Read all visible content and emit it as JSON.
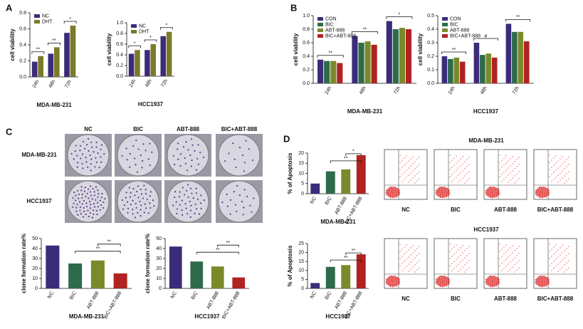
{
  "panels": {
    "letters": [
      "A",
      "B",
      "C",
      "D"
    ],
    "colony": {
      "columns": [
        "NC",
        "BIC",
        "ABT-888",
        "BIC+ABT-888"
      ],
      "rows": [
        "MDA-MB-231",
        "HCC1937"
      ]
    },
    "flow": {
      "titles": [
        "MDA-MB-231",
        "HCC1937"
      ],
      "columns": [
        "NC",
        "BIC",
        "ABT-888",
        "BIC+ABT-888"
      ]
    }
  },
  "chart_data": [
    {
      "type": "grouped_bar",
      "xlabel": "MDA-MB-231",
      "ylabel": "cell viability",
      "categories": [
        "24h",
        "48h",
        "72h"
      ],
      "series": [
        {
          "name": "NC",
          "color": "#3b2c7a",
          "values": [
            0.19,
            0.29,
            0.55
          ]
        },
        {
          "name": "DHT",
          "color": "#7a7a2a",
          "values": [
            0.26,
            0.37,
            0.64
          ]
        }
      ],
      "ylim": [
        0,
        0.8
      ],
      "yticks": [
        {
          "value": 0,
          "label": "0.0"
        },
        0.2,
        0.4,
        0.6,
        0.8
      ],
      "annotations": [
        "**",
        "**",
        "*"
      ]
    },
    {
      "type": "grouped_bar",
      "xlabel": "HCC1937",
      "ylabel": "cell viability",
      "categories": [
        "24h",
        "48h",
        "72h"
      ],
      "series": [
        {
          "name": "NC",
          "color": "#3b2c7a",
          "values": [
            0.42,
            0.49,
            0.75
          ]
        },
        {
          "name": "DHT",
          "color": "#7a7a2a",
          "values": [
            0.49,
            0.6,
            0.83
          ]
        }
      ],
      "ylim": [
        0,
        1
      ],
      "yticks": [
        {
          "value": 0,
          "label": "0.0"
        },
        0.2,
        0.4,
        0.6,
        0.8,
        {
          "value": 1,
          "label": "1.0"
        }
      ],
      "annotations": [
        "*",
        "*",
        "*"
      ]
    },
    {
      "type": "grouped_bar",
      "xlabel": "MDA-MB-231",
      "ylabel": "cell viability",
      "categories": [
        "24h",
        "48h",
        "72h"
      ],
      "series": [
        {
          "name": "CON",
          "color": "#3b2c7a",
          "values": [
            0.35,
            0.7,
            0.92
          ]
        },
        {
          "name": "BIC",
          "color": "#2e6b4a",
          "values": [
            0.33,
            0.6,
            0.8
          ]
        },
        {
          "name": "ABT-888",
          "color": "#7a8a2a",
          "values": [
            0.33,
            0.62,
            0.82
          ]
        },
        {
          "name": "BIC+ABT-888",
          "color": "#b22222",
          "values": [
            0.3,
            0.57,
            0.8
          ]
        }
      ],
      "ylim": [
        0,
        1
      ],
      "yticks": [
        {
          "value": 0,
          "label": "0.0"
        },
        0.2,
        0.4,
        0.6,
        0.8,
        {
          "value": 1,
          "label": "1.0"
        }
      ],
      "annotations": [
        "**",
        "**",
        "*"
      ]
    },
    {
      "type": "grouped_bar",
      "xlabel": "HCC1937",
      "ylabel": "cell viability",
      "categories": [
        "24h",
        "48h",
        "72h"
      ],
      "series": [
        {
          "name": "CON",
          "color": "#3b2c7a",
          "values": [
            0.2,
            0.3,
            0.44
          ]
        },
        {
          "name": "BIC",
          "color": "#2e6b4a",
          "values": [
            0.18,
            0.21,
            0.38
          ]
        },
        {
          "name": "ABT-888",
          "color": "#7a8a2a",
          "values": [
            0.19,
            0.22,
            0.38
          ]
        },
        {
          "name": "BIC+ABT-888",
          "color": "#b22222",
          "values": [
            0.16,
            0.19,
            0.31
          ]
        }
      ],
      "ylim": [
        0,
        0.5
      ],
      "yticks": [
        {
          "value": 0,
          "label": "0.0"
        },
        0.1,
        0.2,
        0.3,
        0.4,
        0.5
      ],
      "annotations": [
        "**",
        "#",
        "**"
      ]
    },
    {
      "type": "bar",
      "xlabel": "MDA-MB-231",
      "ylabel": "clone formation rate%",
      "categories": [
        "NC",
        "BIC",
        "ABT-888",
        "BIC+ABT-888"
      ],
      "values": [
        43,
        25,
        28,
        15
      ],
      "colors": [
        "#3b2c7a",
        "#2e6b4a",
        "#7a8a2a",
        "#b22222"
      ],
      "ylim": [
        0,
        50
      ],
      "yticks": [
        0,
        10,
        20,
        30,
        40,
        50
      ],
      "annotations": [
        "**",
        "**"
      ]
    },
    {
      "type": "bar",
      "xlabel": "HCC1937",
      "ylabel": "clone formation rate%",
      "categories": [
        "NC",
        "BIC",
        "ABT-888",
        "BIC+ABT-888"
      ],
      "values": [
        42,
        27,
        22,
        11
      ],
      "colors": [
        "#3b2c7a",
        "#2e6b4a",
        "#7a8a2a",
        "#b22222"
      ],
      "ylim": [
        0,
        50
      ],
      "yticks": [
        0,
        10,
        20,
        30,
        40,
        50
      ],
      "annotations": [
        "**",
        "**"
      ]
    },
    {
      "type": "bar",
      "xlabel": "MDA-MB-231",
      "ylabel": "% of Apoptosis",
      "categories": [
        "NC",
        "BIC",
        "ABT-888",
        "BIC+ABT-888"
      ],
      "values": [
        5,
        11,
        12,
        19
      ],
      "colors": [
        "#3b2c7a",
        "#2e6b4a",
        "#7a8a2a",
        "#b22222"
      ],
      "ylim": [
        0,
        20
      ],
      "yticks": [
        0,
        5,
        10,
        15,
        20
      ],
      "annotations": [
        "**",
        "*"
      ]
    },
    {
      "type": "bar",
      "xlabel": "HCC1937",
      "ylabel": "% of Apoptosis",
      "categories": [
        "NC",
        "BIC",
        "ABT-888",
        "BIC+ABT-888"
      ],
      "values": [
        3,
        12,
        13,
        19
      ],
      "colors": [
        "#3b2c7a",
        "#2e6b4a",
        "#7a8a2a",
        "#b22222"
      ],
      "ylim": [
        0,
        25
      ],
      "yticks": [
        0,
        5,
        10,
        15,
        20,
        25
      ],
      "annotations": [
        "**",
        "**"
      ]
    }
  ]
}
